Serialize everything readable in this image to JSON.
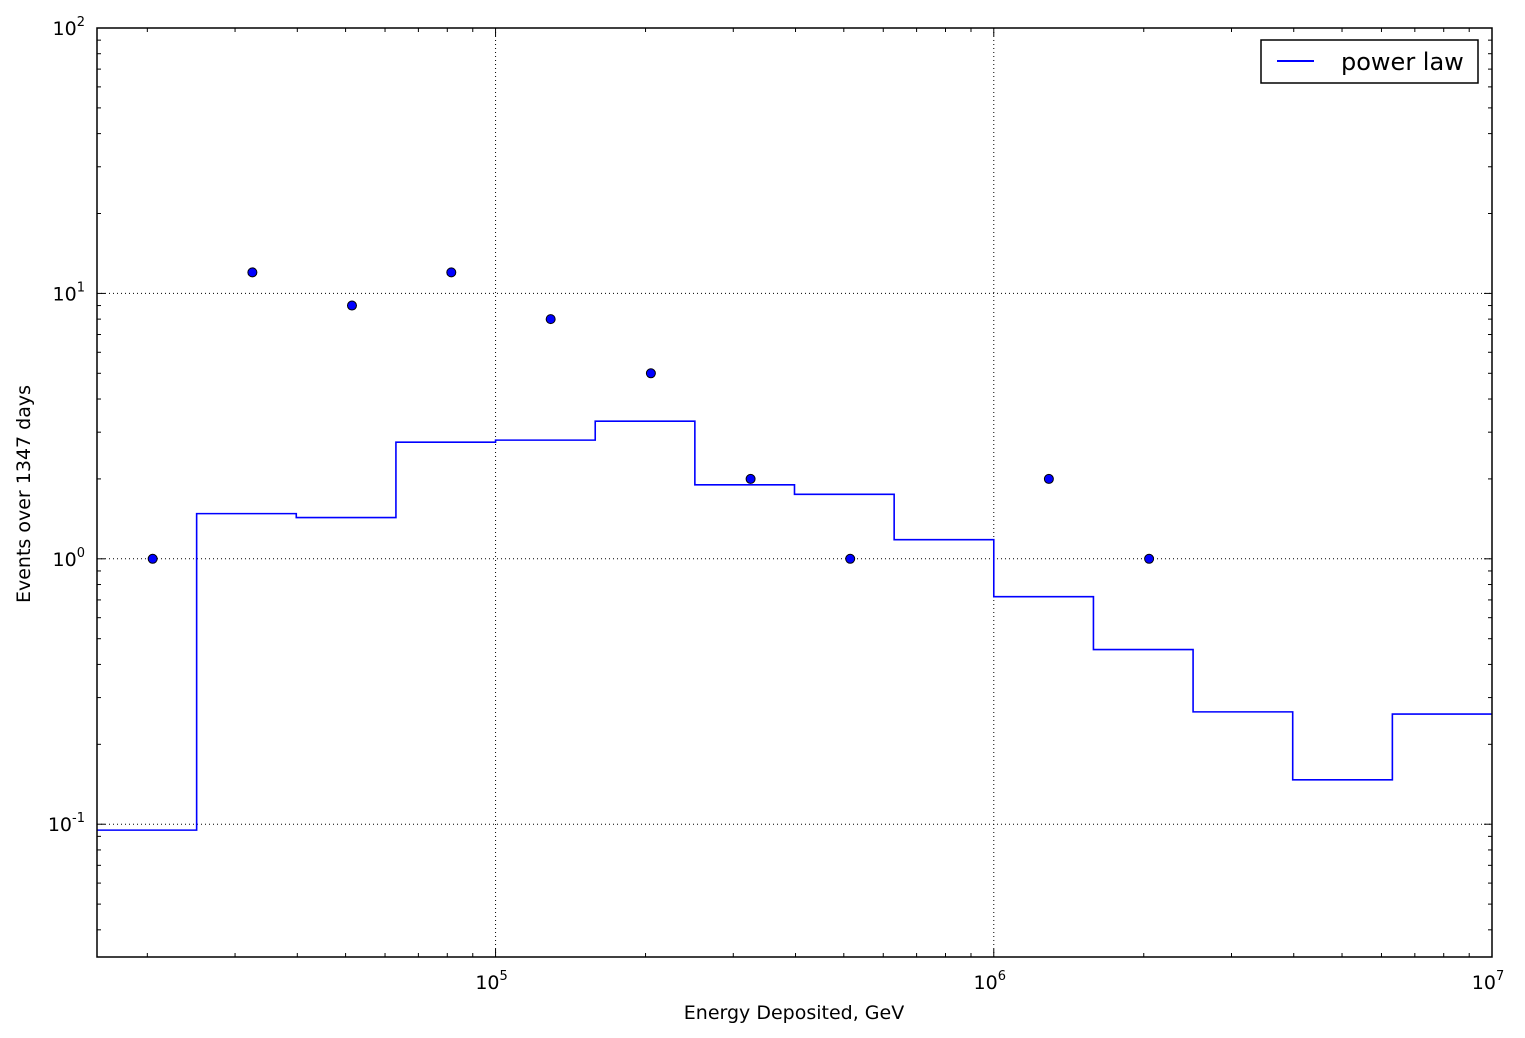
{
  "chart_data": {
    "type": "line",
    "title": "",
    "xlabel": "Energy Deposited, GeV",
    "ylabel": "Events over 1347 days",
    "x_scale": "log",
    "y_scale": "log",
    "xlim": [
      15850,
      10000000
    ],
    "ylim": [
      0.0316,
      100
    ],
    "grid": true,
    "legend_position": "top-right",
    "x_ticks": [
      {
        "value": 100000,
        "base": "10",
        "exp": "5"
      },
      {
        "value": 1000000,
        "base": "10",
        "exp": "6"
      },
      {
        "value": 10000000,
        "base": "10",
        "exp": "7"
      }
    ],
    "y_ticks": [
      {
        "value": 0.1,
        "base": "10",
        "exp": "-1"
      },
      {
        "value": 1,
        "base": "10",
        "exp": "0"
      },
      {
        "value": 10,
        "base": "10",
        "exp": "1"
      },
      {
        "value": 100,
        "base": "10",
        "exp": "2"
      }
    ],
    "series": [
      {
        "name": "power law",
        "type": "step",
        "color": "#0000ff",
        "bin_edges": [
          15850,
          25120,
          39810,
          63100,
          100000,
          158500,
          251200,
          398100,
          631000,
          1000000,
          1585000,
          2512000,
          3981000,
          6310000,
          10000000
        ],
        "values": [
          0.095,
          1.48,
          1.43,
          2.75,
          2.8,
          3.3,
          1.9,
          1.75,
          1.18,
          0.72,
          0.455,
          0.265,
          0.147,
          0.26
        ]
      },
      {
        "type": "scatter",
        "color": "#0000ff",
        "x": [
          20500,
          32500,
          51500,
          81500,
          129000,
          205000,
          325000,
          515000,
          1290000,
          2050000
        ],
        "y": [
          1,
          12,
          9,
          12,
          8,
          5,
          2,
          1,
          2,
          1
        ]
      }
    ]
  }
}
